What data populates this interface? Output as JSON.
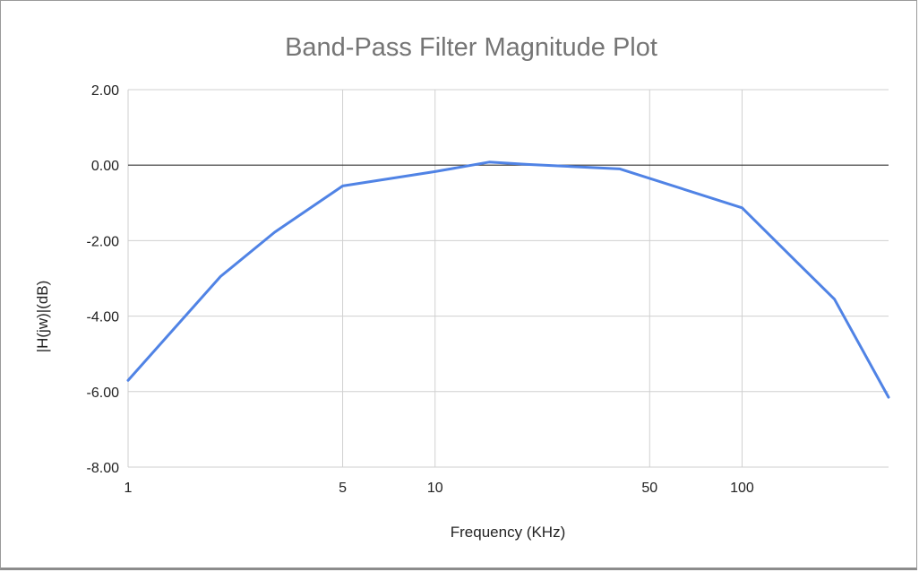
{
  "chart_data": {
    "type": "line",
    "title": "Band-Pass Filter Magnitude Plot",
    "xlabel": "Frequency (KHz)",
    "ylabel": "|H(jw)|(dB)",
    "x_scale": "log",
    "xlim": [
      1,
      300
    ],
    "ylim": [
      -8,
      2
    ],
    "x_ticks": [
      1,
      5,
      10,
      50,
      100
    ],
    "x_tick_labels": [
      "1",
      "5",
      "10",
      "50",
      "100"
    ],
    "y_ticks": [
      2,
      0,
      -2,
      -4,
      -6,
      -8
    ],
    "y_tick_labels": [
      "2.00",
      "0.00",
      "-2.00",
      "-4.00",
      "-6.00",
      "-8.00"
    ],
    "grid": true,
    "zero_line": true,
    "series": [
      {
        "color": "#5083e5",
        "x": [
          1,
          2,
          3,
          5,
          10,
          15,
          20,
          40,
          100,
          150,
          200,
          300
        ],
        "y": [
          -5.7,
          -2.95,
          -1.78,
          -0.55,
          -0.17,
          0.08,
          0.02,
          -0.1,
          -1.13,
          -2.55,
          -3.55,
          -6.15
        ]
      }
    ]
  }
}
